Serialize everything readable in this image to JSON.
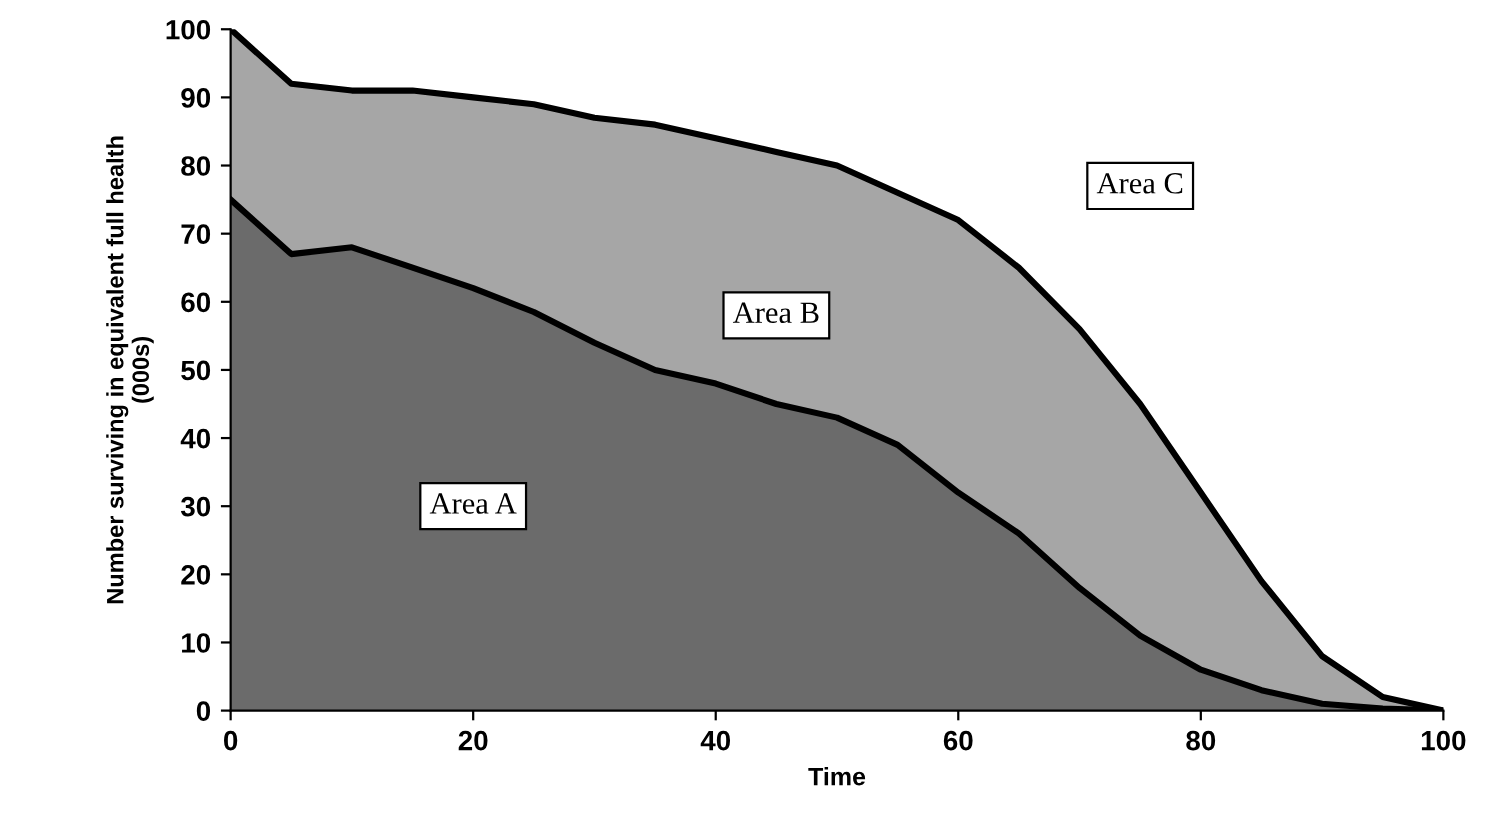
{
  "chart_data": {
    "type": "area",
    "xlabel": "Time",
    "ylabel": "Number surviving in equivalent full health\n(000s)",
    "x": [
      0,
      5,
      10,
      15,
      20,
      25,
      30,
      35,
      40,
      45,
      50,
      55,
      60,
      65,
      70,
      75,
      80,
      85,
      90,
      95,
      100
    ],
    "series": [
      {
        "color": "#a6a6a6",
        "values": [
          100,
          92,
          91,
          91,
          90,
          89,
          87,
          86,
          84,
          82,
          80,
          76,
          72,
          65,
          56,
          45,
          32,
          19,
          8,
          2,
          0
        ]
      },
      {
        "color": "#6b6b6b",
        "values": [
          75,
          67,
          68,
          65,
          62,
          58.5,
          54,
          50,
          48,
          45,
          43,
          39,
          32,
          26,
          18,
          11,
          6,
          3,
          1,
          0.3,
          0
        ]
      }
    ],
    "xlim": [
      0,
      100
    ],
    "xticks": [
      0,
      20,
      40,
      60,
      80,
      100
    ],
    "ylim": [
      0,
      100
    ],
    "yticks": [
      0,
      10,
      20,
      30,
      40,
      50,
      60,
      70,
      80,
      90,
      100
    ],
    "grid": false,
    "legend": false,
    "annotations": [
      "Area A",
      "Area B",
      "Area C"
    ]
  }
}
